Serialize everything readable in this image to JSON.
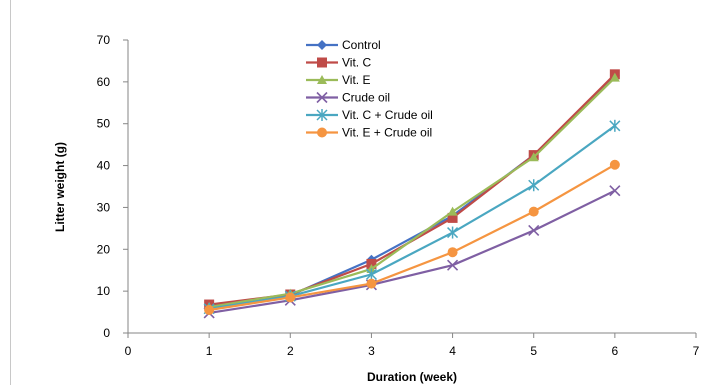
{
  "chart_data": {
    "type": "line",
    "title": "",
    "xlabel": "Duration (week)",
    "ylabel": "Litter weight (g)",
    "xlim": [
      0,
      7
    ],
    "ylim": [
      0,
      70
    ],
    "xticks": [
      0,
      1,
      2,
      3,
      4,
      5,
      6,
      7
    ],
    "yticks": [
      0,
      10,
      20,
      30,
      40,
      50,
      60,
      70
    ],
    "grid": false,
    "legend_position": "top-center",
    "x": [
      1,
      2,
      3,
      4,
      5,
      6
    ],
    "series": [
      {
        "name": "Control",
        "color": "#4572c4",
        "marker": "diamond",
        "values": [
          6.5,
          9.0,
          17.5,
          28.0,
          42.5,
          61.5
        ]
      },
      {
        "name": "Vit. C",
        "color": "#bf4b48",
        "marker": "square",
        "values": [
          6.8,
          9.2,
          16.5,
          27.5,
          42.5,
          61.8
        ]
      },
      {
        "name": "Vit. E",
        "color": "#9bbb59",
        "marker": "triangle",
        "values": [
          6.2,
          9.4,
          15.3,
          29.0,
          42.0,
          61.0
        ]
      },
      {
        "name": "Crude oil",
        "color": "#7f5fa3",
        "marker": "x",
        "values": [
          4.8,
          7.8,
          11.5,
          16.2,
          24.5,
          34.0
        ]
      },
      {
        "name": "Vit. C + Crude oil",
        "color": "#4aa7c1",
        "marker": "star",
        "values": [
          5.8,
          8.8,
          14.0,
          24.0,
          35.3,
          49.5
        ]
      },
      {
        "name": "Vit. E + Crude oil",
        "color": "#f59541",
        "marker": "circle",
        "values": [
          5.5,
          8.5,
          11.8,
          19.3,
          29.0,
          40.2
        ]
      }
    ]
  }
}
